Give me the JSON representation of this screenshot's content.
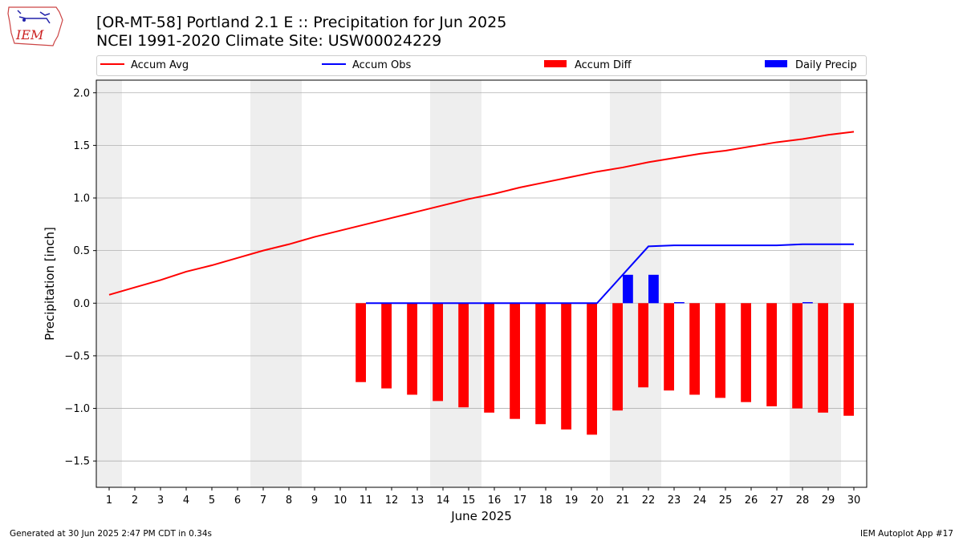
{
  "header": {
    "logo_text": "IEM",
    "title_line1": "[OR-MT-58] Portland 2.1 E :: Precipitation for Jun 2025",
    "title_line2": "NCEI 1991-2020 Climate Site: USW00024229"
  },
  "footer": {
    "generated": "Generated at 30 Jun 2025 2:47 PM CDT in 0.34s",
    "app": "IEM Autoplot App #17"
  },
  "colors": {
    "avg": "#ff0000",
    "obs": "#0000ff",
    "diff": "#ff0000",
    "daily": "#0000ff",
    "weekend_shade": "#eeeeee",
    "grid": "#b0b0b0"
  },
  "chart_data": {
    "type": "bar",
    "xlabel": "June 2025",
    "ylabel": "Precipitation [inch]",
    "ylim": [
      -1.75,
      2.12
    ],
    "yticks": [
      -1.5,
      -1.0,
      -0.5,
      0.0,
      0.5,
      1.0,
      1.5,
      2.0
    ],
    "ytick_labels": [
      "−1.5",
      "−1.0",
      "−0.5",
      "0.0",
      "0.5",
      "1.0",
      "1.5",
      "2.0"
    ],
    "x": [
      1,
      2,
      3,
      4,
      5,
      6,
      7,
      8,
      9,
      10,
      11,
      12,
      13,
      14,
      15,
      16,
      17,
      18,
      19,
      20,
      21,
      22,
      23,
      24,
      25,
      26,
      27,
      28,
      29,
      30
    ],
    "xlim": [
      0.5,
      30.5
    ],
    "grid": "horizontal",
    "legend_position": "top",
    "weekend_days": [
      1,
      7,
      8,
      14,
      15,
      21,
      22,
      28,
      29
    ],
    "series": [
      {
        "name": "Accum Avg",
        "kind": "line",
        "x": [
          1,
          2,
          3,
          4,
          5,
          6,
          7,
          8,
          9,
          10,
          11,
          12,
          13,
          14,
          15,
          16,
          17,
          18,
          19,
          20,
          21,
          22,
          23,
          24,
          25,
          26,
          27,
          28,
          29,
          30
        ],
        "values": [
          0.08,
          0.15,
          0.22,
          0.3,
          0.36,
          0.43,
          0.5,
          0.56,
          0.63,
          0.69,
          0.75,
          0.81,
          0.87,
          0.93,
          0.99,
          1.04,
          1.1,
          1.15,
          1.2,
          1.25,
          1.29,
          1.34,
          1.38,
          1.42,
          1.45,
          1.49,
          1.53,
          1.56,
          1.6,
          1.63
        ]
      },
      {
        "name": "Accum Obs",
        "kind": "line",
        "x": [
          11,
          12,
          13,
          14,
          15,
          16,
          17,
          18,
          19,
          20,
          21,
          22,
          23,
          24,
          25,
          26,
          27,
          28,
          29,
          30
        ],
        "values": [
          0,
          0,
          0,
          0,
          0,
          0,
          0,
          0,
          0,
          0,
          0.27,
          0.54,
          0.55,
          0.55,
          0.55,
          0.55,
          0.55,
          0.56,
          0.56,
          0.56
        ]
      },
      {
        "name": "Accum Diff",
        "kind": "bar",
        "x": [
          11,
          12,
          13,
          14,
          15,
          16,
          17,
          18,
          19,
          20,
          21,
          22,
          23,
          24,
          25,
          26,
          27,
          28,
          29,
          30
        ],
        "values": [
          -0.75,
          -0.81,
          -0.87,
          -0.93,
          -0.99,
          -1.04,
          -1.1,
          -1.15,
          -1.2,
          -1.25,
          -1.02,
          -0.8,
          -0.83,
          -0.87,
          -0.9,
          -0.94,
          -0.98,
          -1.0,
          -1.04,
          -1.07
        ]
      },
      {
        "name": "Daily Precip",
        "kind": "bar",
        "x": [
          11,
          12,
          13,
          14,
          15,
          16,
          17,
          18,
          19,
          20,
          21,
          22,
          23,
          24,
          25,
          26,
          27,
          28,
          29,
          30
        ],
        "values": [
          0,
          0,
          0,
          0,
          0,
          0,
          0,
          0,
          0,
          0,
          0.27,
          0.27,
          0.01,
          0,
          0,
          0,
          0,
          0.01,
          0,
          0
        ]
      }
    ]
  }
}
